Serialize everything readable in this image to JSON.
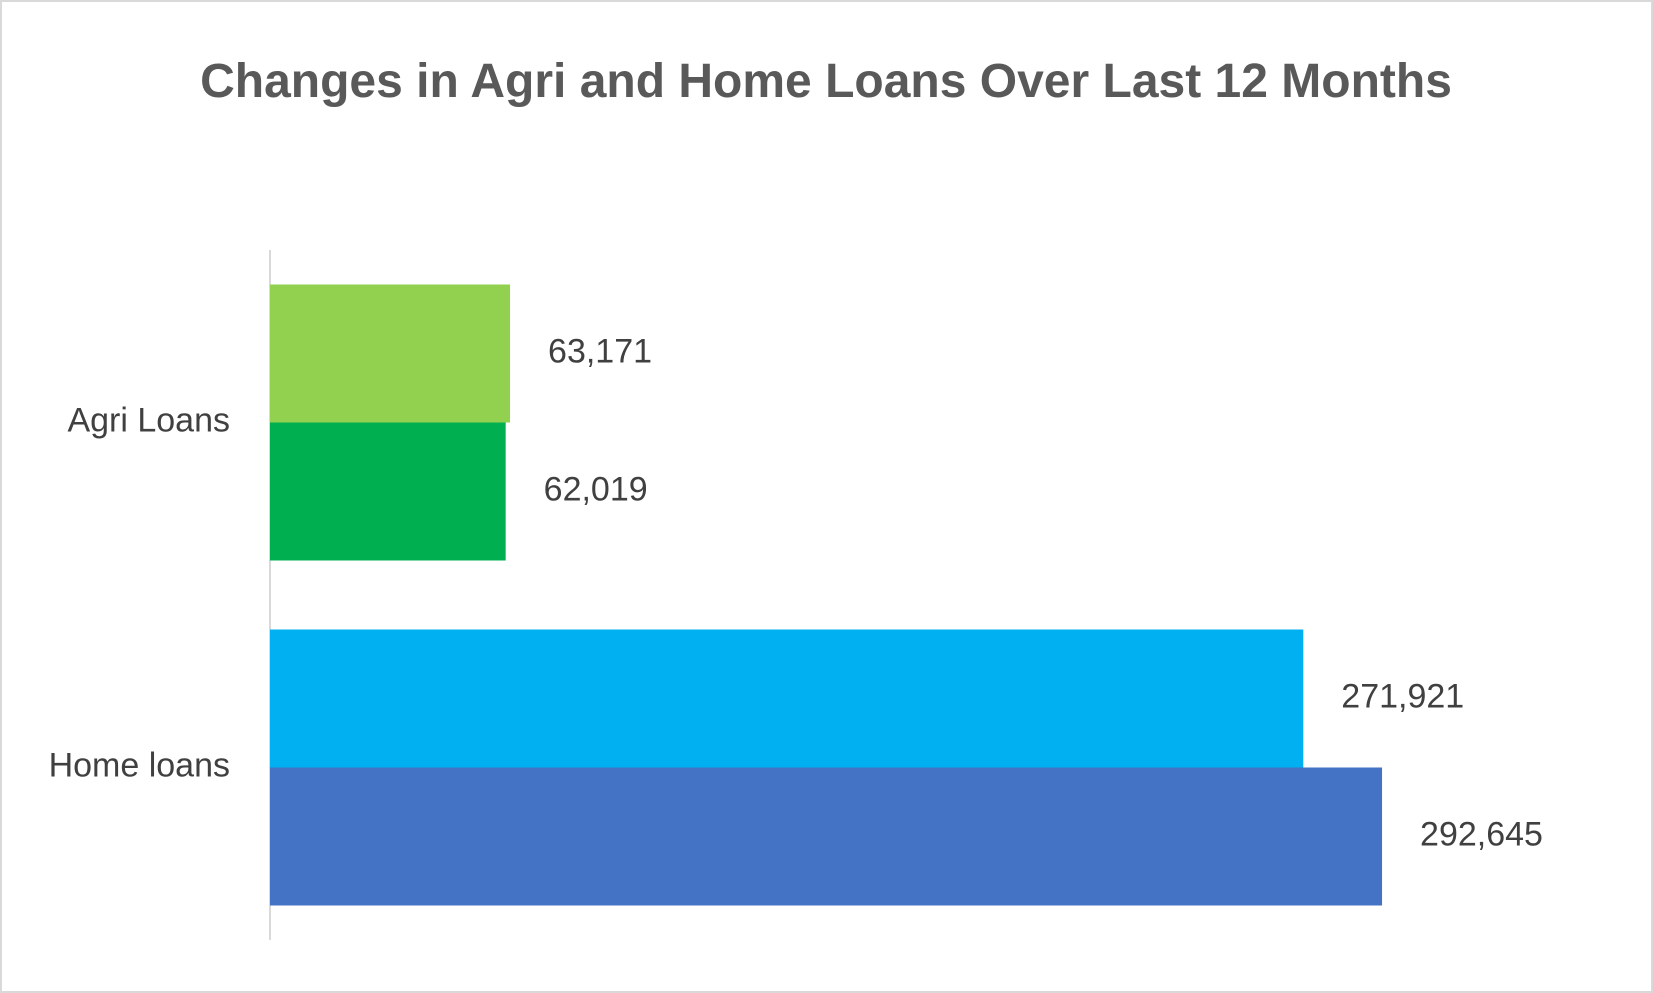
{
  "chart_data": {
    "type": "hbar",
    "title": "Changes in Agri and Home Loans Over Last 12 Months",
    "categories": [
      "Agri Loans",
      "Home loans"
    ],
    "series": [
      {
        "colors": [
          "#92d050",
          "#00b0f0"
        ],
        "values": [
          63171,
          271921
        ],
        "value_labels": [
          "63,171",
          "271,921"
        ]
      },
      {
        "colors": [
          "#00b050",
          "#4472c4"
        ],
        "values": [
          62019,
          292645
        ],
        "value_labels": [
          "62,019",
          "292,645"
        ]
      }
    ],
    "xlim": [
      0,
      350000
    ]
  }
}
